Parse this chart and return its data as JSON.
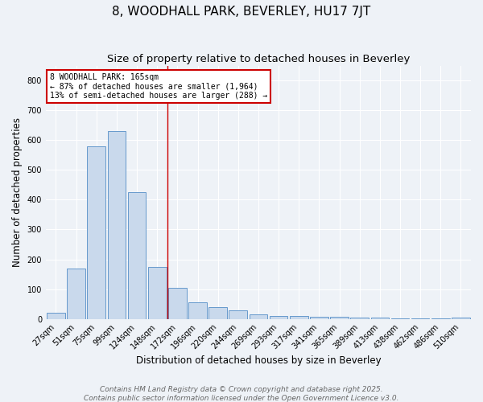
{
  "title1": "8, WOODHALL PARK, BEVERLEY, HU17 7JT",
  "title2": "Size of property relative to detached houses in Beverley",
  "xlabel": "Distribution of detached houses by size in Beverley",
  "ylabel": "Number of detached properties",
  "categories": [
    "27sqm",
    "51sqm",
    "75sqm",
    "99sqm",
    "124sqm",
    "148sqm",
    "172sqm",
    "196sqm",
    "220sqm",
    "244sqm",
    "269sqm",
    "293sqm",
    "317sqm",
    "341sqm",
    "365sqm",
    "389sqm",
    "413sqm",
    "438sqm",
    "462sqm",
    "486sqm",
    "510sqm"
  ],
  "values": [
    20,
    170,
    580,
    630,
    425,
    175,
    105,
    55,
    40,
    30,
    15,
    10,
    10,
    8,
    6,
    4,
    4,
    2,
    1,
    1,
    5
  ],
  "bar_color": "#c9d9ec",
  "bar_edge_color": "#6699cc",
  "red_line_x": 5.5,
  "annotation_text": "8 WOODHALL PARK: 165sqm\n← 87% of detached houses are smaller (1,964)\n13% of semi-detached houses are larger (288) →",
  "annotation_box_color": "#ffffff",
  "annotation_box_edge": "#cc0000",
  "footer1": "Contains HM Land Registry data © Crown copyright and database right 2025.",
  "footer2": "Contains public sector information licensed under the Open Government Licence v3.0.",
  "ylim": [
    0,
    850
  ],
  "bg_color": "#eef2f7",
  "grid_color": "#ffffff",
  "title1_fontsize": 11,
  "title2_fontsize": 9.5,
  "axis_label_fontsize": 8.5,
  "tick_fontsize": 7,
  "annotation_fontsize": 7,
  "footer_fontsize": 6.5
}
